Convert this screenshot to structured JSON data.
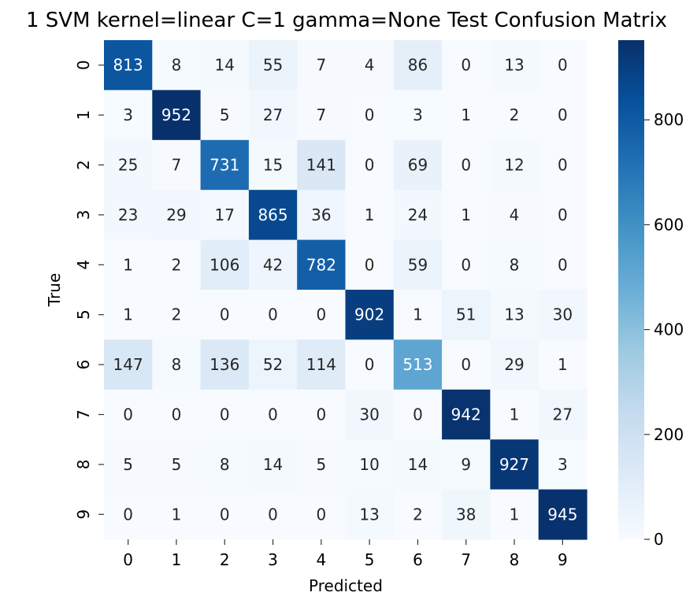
{
  "chart_data": {
    "type": "heatmap",
    "title": "1 SVM kernel=linear C=1 gamma=None Test Confusion Matrix",
    "xlabel": "Predicted",
    "ylabel": "True",
    "x_categories": [
      "0",
      "1",
      "2",
      "3",
      "4",
      "5",
      "6",
      "7",
      "8",
      "9"
    ],
    "y_categories": [
      "0",
      "1",
      "2",
      "3",
      "4",
      "5",
      "6",
      "7",
      "8",
      "9"
    ],
    "values": [
      [
        813,
        8,
        14,
        55,
        7,
        4,
        86,
        0,
        13,
        0
      ],
      [
        3,
        952,
        5,
        27,
        7,
        0,
        3,
        1,
        2,
        0
      ],
      [
        25,
        7,
        731,
        15,
        141,
        0,
        69,
        0,
        12,
        0
      ],
      [
        23,
        29,
        17,
        865,
        36,
        1,
        24,
        1,
        4,
        0
      ],
      [
        1,
        2,
        106,
        42,
        782,
        0,
        59,
        0,
        8,
        0
      ],
      [
        1,
        2,
        0,
        0,
        0,
        902,
        1,
        51,
        13,
        30
      ],
      [
        147,
        8,
        136,
        52,
        114,
        0,
        513,
        0,
        29,
        1
      ],
      [
        0,
        0,
        0,
        0,
        0,
        30,
        0,
        942,
        1,
        27
      ],
      [
        5,
        5,
        8,
        14,
        5,
        10,
        14,
        9,
        927,
        3
      ],
      [
        0,
        1,
        0,
        0,
        0,
        13,
        2,
        38,
        1,
        945
      ]
    ],
    "colormap": "Blues",
    "vmin": 0,
    "vmax": 952,
    "colorbar_ticks": [
      0,
      200,
      400,
      600,
      800
    ],
    "colors": {
      "low": "#f7fbff",
      "high": "#08306b",
      "text_dark": "#262626",
      "text_light": "#ffffff"
    },
    "grid": false,
    "legend": "colorbar-right"
  }
}
